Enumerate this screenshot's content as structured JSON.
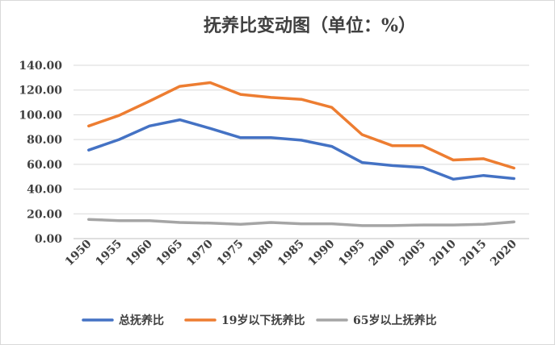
{
  "chart_data": {
    "type": "line",
    "title": "抚养比变动图（单位：%）",
    "xlabel": "",
    "ylabel": "",
    "x": [
      "1950",
      "1955",
      "1960",
      "1965",
      "1970",
      "1975",
      "1980",
      "1985",
      "1990",
      "1995",
      "2000",
      "2005",
      "2010",
      "2015",
      "2020"
    ],
    "ylim": [
      0,
      140
    ],
    "yticks": [
      "0.00",
      "20.00",
      "40.00",
      "60.00",
      "80.00",
      "100.00",
      "120.00",
      "140.00"
    ],
    "grid": true,
    "legend_position": "bottom",
    "series": [
      {
        "name": "总抚养比",
        "color": "#4472c4",
        "values": [
          71.5,
          80,
          91,
          96,
          89,
          81.5,
          81.5,
          79.5,
          74.5,
          61.5,
          59,
          57.5,
          48,
          51,
          48.5
        ]
      },
      {
        "name": "19岁以下抚养比",
        "color": "#ed7d31",
        "values": [
          91,
          99.5,
          111,
          123,
          126,
          116.5,
          114,
          112.5,
          106,
          84,
          75,
          75,
          63.5,
          64.5,
          57
        ]
      },
      {
        "name": "65岁以上抚养比",
        "color": "#a5a5a5",
        "values": [
          15.5,
          14.5,
          14.5,
          13,
          12.5,
          11.5,
          13,
          12,
          12,
          10.5,
          10.5,
          11,
          11,
          11.5,
          13.5
        ]
      }
    ]
  }
}
